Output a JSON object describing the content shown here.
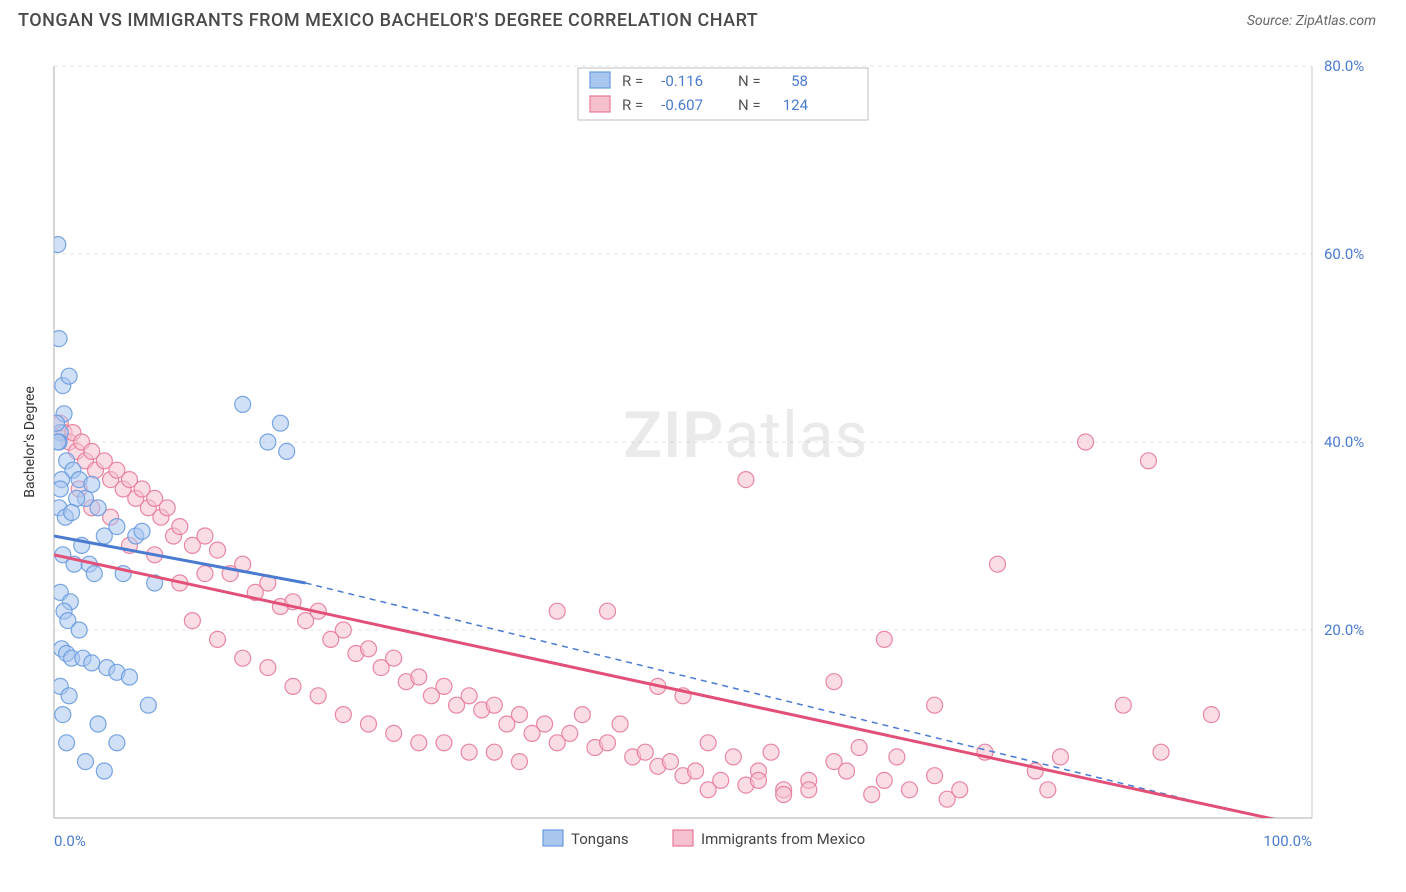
{
  "title": "TONGAN VS IMMIGRANTS FROM MEXICO BACHELOR'S DEGREE CORRELATION CHART",
  "source": "Source: ZipAtlas.com",
  "watermark_a": "ZIP",
  "watermark_b": "atlas",
  "y_axis_label": "Bachelor's Degree",
  "legend_top": {
    "series": [
      {
        "swatch": "#a9c7ee",
        "stroke": "#6a9be0",
        "r_label": "R =",
        "r_value": "-0.116",
        "n_label": "N =",
        "n_value": "58"
      },
      {
        "swatch": "#f6c1ce",
        "stroke": "#e77a9a",
        "r_label": "R =",
        "r_value": "-0.607",
        "n_label": "N =",
        "n_value": "124"
      }
    ],
    "label_color": "#555555",
    "value_color": "#4a7bd0",
    "border_color": "#bfbfbf"
  },
  "legend_bottom": {
    "a": {
      "swatch": "#a9c7ee",
      "stroke": "#6a9be0",
      "label": "Tongans"
    },
    "b": {
      "swatch": "#f6c1ce",
      "stroke": "#e77a9a",
      "label": "Immigrants from Mexico"
    }
  },
  "chart": {
    "type": "scatter",
    "xlim": [
      0,
      100
    ],
    "ylim": [
      0,
      80
    ],
    "y_ticks": [
      20,
      40,
      60,
      80
    ],
    "y_tick_labels": [
      "20.0%",
      "40.0%",
      "60.0%",
      "80.0%"
    ],
    "x_ticks": [
      0,
      100
    ],
    "x_tick_labels": [
      "0.0%",
      "100.0%"
    ],
    "grid_color": "#e6e6e6",
    "axis_color": "#c9c9c9",
    "plot_bg": "#ffffff",
    "marker_radius": 8,
    "marker_opacity": 0.55,
    "series": [
      {
        "name": "tongans",
        "fill": "#a9c7ee",
        "stroke": "#6a9be0",
        "trend": {
          "x1": 0,
          "y1": 30,
          "x2": 20,
          "y2": 25,
          "solid_color": "#4a7bd0",
          "dash_x2": 90,
          "dash_y2": 2,
          "dash_color": "#4a7bd0"
        },
        "points": [
          [
            0.3,
            61
          ],
          [
            0.4,
            51
          ],
          [
            0.7,
            46
          ],
          [
            1.2,
            47
          ],
          [
            0.8,
            43
          ],
          [
            0.5,
            41
          ],
          [
            0.4,
            40
          ],
          [
            0.3,
            40
          ],
          [
            0.2,
            42
          ],
          [
            1.0,
            38
          ],
          [
            1.5,
            37
          ],
          [
            0.6,
            36
          ],
          [
            0.5,
            35
          ],
          [
            2.0,
            36
          ],
          [
            2.5,
            34
          ],
          [
            3.0,
            35.5
          ],
          [
            1.8,
            34
          ],
          [
            0.4,
            33
          ],
          [
            0.9,
            32
          ],
          [
            1.4,
            32.5
          ],
          [
            3.5,
            33
          ],
          [
            4.0,
            30
          ],
          [
            5.0,
            31
          ],
          [
            6.5,
            30
          ],
          [
            7.0,
            30.5
          ],
          [
            2.2,
            29
          ],
          [
            0.7,
            28
          ],
          [
            1.6,
            27
          ],
          [
            2.8,
            27
          ],
          [
            3.2,
            26
          ],
          [
            5.5,
            26
          ],
          [
            8.0,
            25
          ],
          [
            0.5,
            24
          ],
          [
            1.3,
            23
          ],
          [
            0.8,
            22
          ],
          [
            1.1,
            21
          ],
          [
            2.0,
            20
          ],
          [
            0.6,
            18
          ],
          [
            1.0,
            17.5
          ],
          [
            1.4,
            17
          ],
          [
            2.3,
            17
          ],
          [
            3.0,
            16.5
          ],
          [
            4.2,
            16
          ],
          [
            5.0,
            15.5
          ],
          [
            6.0,
            15
          ],
          [
            7.5,
            12
          ],
          [
            0.5,
            14
          ],
          [
            1.2,
            13
          ],
          [
            0.7,
            11
          ],
          [
            3.5,
            10
          ],
          [
            5.0,
            8
          ],
          [
            1.0,
            8
          ],
          [
            2.5,
            6
          ],
          [
            4.0,
            5
          ],
          [
            15.0,
            44
          ],
          [
            17.0,
            40
          ],
          [
            18.0,
            42
          ],
          [
            18.5,
            39
          ]
        ]
      },
      {
        "name": "mexico",
        "fill": "#f6c1ce",
        "stroke": "#e77a9a",
        "trend": {
          "x1": 0,
          "y1": 28,
          "x2": 100,
          "y2": -1,
          "solid_color": "#e25078"
        },
        "points": [
          [
            0.5,
            42
          ],
          [
            0.8,
            41
          ],
          [
            1.2,
            40
          ],
          [
            1.5,
            41
          ],
          [
            1.8,
            39
          ],
          [
            2.2,
            40
          ],
          [
            2.5,
            38
          ],
          [
            3.0,
            39
          ],
          [
            3.3,
            37
          ],
          [
            4.0,
            38
          ],
          [
            4.5,
            36
          ],
          [
            5.0,
            37
          ],
          [
            5.5,
            35
          ],
          [
            6.0,
            36
          ],
          [
            6.5,
            34
          ],
          [
            7.0,
            35
          ],
          [
            7.5,
            33
          ],
          [
            8.0,
            34
          ],
          [
            8.5,
            32
          ],
          [
            9.0,
            33
          ],
          [
            9.5,
            30
          ],
          [
            10.0,
            31
          ],
          [
            11.0,
            29
          ],
          [
            12.0,
            30
          ],
          [
            13.0,
            28.5
          ],
          [
            14.0,
            26
          ],
          [
            15.0,
            27
          ],
          [
            16.0,
            24
          ],
          [
            17.0,
            25
          ],
          [
            18.0,
            22.5
          ],
          [
            19.0,
            23
          ],
          [
            20.0,
            21
          ],
          [
            21.0,
            22
          ],
          [
            22.0,
            19
          ],
          [
            23.0,
            20
          ],
          [
            24.0,
            17.5
          ],
          [
            25.0,
            18
          ],
          [
            26.0,
            16
          ],
          [
            27.0,
            17
          ],
          [
            28.0,
            14.5
          ],
          [
            29.0,
            15
          ],
          [
            30.0,
            13
          ],
          [
            31.0,
            14
          ],
          [
            32.0,
            12
          ],
          [
            33.0,
            13
          ],
          [
            34.0,
            11.5
          ],
          [
            35.0,
            12
          ],
          [
            36.0,
            10
          ],
          [
            37.0,
            11
          ],
          [
            38.0,
            9
          ],
          [
            39.0,
            10
          ],
          [
            40.0,
            8
          ],
          [
            41.0,
            9
          ],
          [
            42.0,
            11
          ],
          [
            43.0,
            7.5
          ],
          [
            44.0,
            8
          ],
          [
            45.0,
            10
          ],
          [
            46.0,
            6.5
          ],
          [
            47.0,
            7
          ],
          [
            48.0,
            5.5
          ],
          [
            49.0,
            6
          ],
          [
            50.0,
            4.5
          ],
          [
            51.0,
            5
          ],
          [
            52.0,
            8
          ],
          [
            53.0,
            4
          ],
          [
            54.0,
            6.5
          ],
          [
            55.0,
            3.5
          ],
          [
            56.0,
            5
          ],
          [
            57.0,
            7
          ],
          [
            58.0,
            3
          ],
          [
            60.0,
            4
          ],
          [
            62.0,
            6
          ],
          [
            55.0,
            36
          ],
          [
            40.0,
            22
          ],
          [
            44.0,
            22
          ],
          [
            48.0,
            14
          ],
          [
            50.0,
            13
          ],
          [
            52.0,
            3
          ],
          [
            56.0,
            4
          ],
          [
            58.0,
            2.5
          ],
          [
            60.0,
            3
          ],
          [
            62.0,
            14.5
          ],
          [
            63.0,
            5
          ],
          [
            64.0,
            7.5
          ],
          [
            65.0,
            2.5
          ],
          [
            66.0,
            4
          ],
          [
            67.0,
            6.5
          ],
          [
            68.0,
            3
          ],
          [
            70.0,
            4.5
          ],
          [
            71.0,
            2
          ],
          [
            72.0,
            3
          ],
          [
            66.0,
            19
          ],
          [
            70.0,
            12
          ],
          [
            74.0,
            7
          ],
          [
            75.0,
            27
          ],
          [
            78.0,
            5
          ],
          [
            79.0,
            3
          ],
          [
            80.0,
            6.5
          ],
          [
            82.0,
            40
          ],
          [
            87.0,
            38
          ],
          [
            85.0,
            12
          ],
          [
            88.0,
            7
          ],
          [
            92.0,
            11
          ],
          [
            6.0,
            29
          ],
          [
            8.0,
            28
          ],
          [
            10.0,
            25
          ],
          [
            12.0,
            26
          ],
          [
            4.5,
            32
          ],
          [
            3.0,
            33
          ],
          [
            2.0,
            35
          ],
          [
            11.0,
            21
          ],
          [
            13.0,
            19
          ],
          [
            15.0,
            17
          ],
          [
            17.0,
            16
          ],
          [
            19.0,
            14
          ],
          [
            21.0,
            13
          ],
          [
            23.0,
            11
          ],
          [
            25.0,
            10
          ],
          [
            27.0,
            9
          ],
          [
            29.0,
            8
          ],
          [
            31.0,
            8
          ],
          [
            33.0,
            7
          ],
          [
            35.0,
            7
          ],
          [
            37.0,
            6
          ]
        ]
      }
    ]
  }
}
